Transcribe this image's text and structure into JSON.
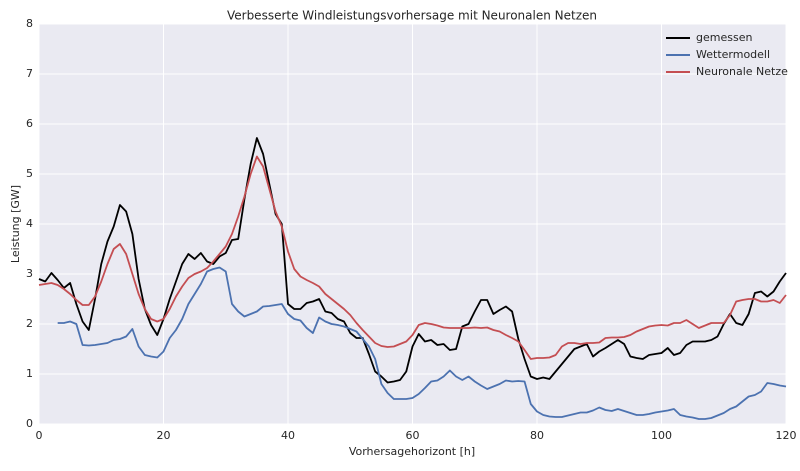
{
  "chart_data": {
    "type": "line",
    "title": "Verbesserte Windleistungsvorhersage mit Neuronalen Netzen",
    "xlabel": "Vorhersagehorizont [h]",
    "ylabel": "Leistung [GW]",
    "x": [
      0,
      1,
      2,
      3,
      4,
      5,
      6,
      7,
      8,
      9,
      10,
      11,
      12,
      13,
      14,
      15,
      16,
      17,
      18,
      19,
      20,
      21,
      22,
      23,
      24,
      25,
      26,
      27,
      28,
      29,
      30,
      31,
      32,
      33,
      34,
      35,
      36,
      37,
      38,
      39,
      40,
      41,
      42,
      43,
      44,
      45,
      46,
      47,
      48,
      49,
      50,
      51,
      52,
      53,
      54,
      55,
      56,
      57,
      58,
      59,
      60,
      61,
      62,
      63,
      64,
      65,
      66,
      67,
      68,
      69,
      70,
      71,
      72,
      73,
      74,
      75,
      76,
      77,
      78,
      79,
      80,
      81,
      82,
      83,
      84,
      85,
      86,
      87,
      88,
      89,
      90,
      91,
      92,
      93,
      94,
      95,
      96,
      97,
      98,
      99,
      100,
      101,
      102,
      103,
      104,
      105,
      106,
      107,
      108,
      109,
      110,
      111,
      112,
      113,
      114,
      115,
      116,
      117,
      118,
      119,
      120
    ],
    "series": [
      {
        "name": "gemessen",
        "color": "#000000",
        "values": [
          2.9,
          2.85,
          3.02,
          2.88,
          2.72,
          2.82,
          2.4,
          2.05,
          1.88,
          2.5,
          3.2,
          3.65,
          3.95,
          4.38,
          4.25,
          3.8,
          2.9,
          2.3,
          1.98,
          1.78,
          2.1,
          2.5,
          2.85,
          3.2,
          3.4,
          3.3,
          3.42,
          3.25,
          3.2,
          3.35,
          3.42,
          3.68,
          3.7,
          4.5,
          5.2,
          5.72,
          5.4,
          4.8,
          4.2,
          4.0,
          2.4,
          2.3,
          2.3,
          2.42,
          2.45,
          2.5,
          2.25,
          2.22,
          2.1,
          2.05,
          1.82,
          1.72,
          1.72,
          1.4,
          1.05,
          0.95,
          0.83,
          0.85,
          0.88,
          1.05,
          1.55,
          1.8,
          1.65,
          1.68,
          1.58,
          1.6,
          1.48,
          1.5,
          1.95,
          2.0,
          2.25,
          2.48,
          2.48,
          2.2,
          2.28,
          2.35,
          2.25,
          1.7,
          1.3,
          0.95,
          0.9,
          0.93,
          0.9,
          1.05,
          1.2,
          1.35,
          1.5,
          1.55,
          1.6,
          1.35,
          1.45,
          1.52,
          1.6,
          1.68,
          1.6,
          1.35,
          1.32,
          1.3,
          1.38,
          1.4,
          1.42,
          1.52,
          1.38,
          1.42,
          1.58,
          1.65,
          1.65,
          1.65,
          1.68,
          1.75,
          2.0,
          2.2,
          2.02,
          1.98,
          2.2,
          2.62,
          2.65,
          2.55,
          2.65,
          2.85,
          3.02
        ]
      },
      {
        "name": "Wettermodell",
        "color": "#4c72b0",
        "values": [
          null,
          null,
          null,
          2.02,
          2.02,
          2.05,
          2.0,
          1.58,
          1.57,
          1.58,
          1.6,
          1.62,
          1.68,
          1.7,
          1.75,
          1.9,
          1.55,
          1.38,
          1.35,
          1.33,
          1.45,
          1.72,
          1.88,
          2.1,
          2.4,
          2.6,
          2.8,
          3.05,
          3.1,
          3.13,
          3.05,
          2.4,
          2.25,
          2.15,
          2.2,
          2.25,
          2.35,
          2.36,
          2.38,
          2.4,
          2.2,
          2.1,
          2.07,
          1.92,
          1.82,
          2.13,
          2.05,
          2.0,
          1.98,
          1.95,
          1.9,
          1.85,
          1.7,
          1.55,
          1.3,
          0.8,
          0.62,
          0.5,
          0.5,
          0.5,
          0.52,
          0.6,
          0.72,
          0.85,
          0.87,
          0.95,
          1.07,
          0.95,
          0.88,
          0.95,
          0.85,
          0.77,
          0.7,
          0.75,
          0.8,
          0.87,
          0.85,
          0.86,
          0.85,
          0.4,
          0.25,
          0.18,
          0.15,
          0.14,
          0.14,
          0.17,
          0.2,
          0.23,
          0.23,
          0.27,
          0.33,
          0.28,
          0.26,
          0.3,
          0.26,
          0.22,
          0.18,
          0.18,
          0.2,
          0.23,
          0.25,
          0.27,
          0.3,
          0.18,
          0.15,
          0.13,
          0.1,
          0.1,
          0.12,
          0.17,
          0.22,
          0.3,
          0.35,
          0.45,
          0.55,
          0.58,
          0.65,
          0.82,
          0.8,
          0.77,
          0.75
        ]
      },
      {
        "name": "Neuronale Netze",
        "color": "#c44e52",
        "values": [
          2.78,
          2.8,
          2.82,
          2.78,
          2.7,
          2.6,
          2.48,
          2.38,
          2.38,
          2.55,
          2.85,
          3.2,
          3.5,
          3.6,
          3.4,
          3.0,
          2.6,
          2.3,
          2.1,
          2.05,
          2.1,
          2.3,
          2.55,
          2.75,
          2.92,
          3.0,
          3.05,
          3.12,
          3.25,
          3.4,
          3.55,
          3.8,
          4.15,
          4.55,
          5.0,
          5.35,
          5.15,
          4.7,
          4.25,
          3.95,
          3.45,
          3.1,
          2.95,
          2.88,
          2.82,
          2.75,
          2.6,
          2.5,
          2.4,
          2.3,
          2.18,
          2.02,
          1.88,
          1.75,
          1.62,
          1.56,
          1.54,
          1.55,
          1.6,
          1.65,
          1.78,
          1.98,
          2.02,
          2.0,
          1.97,
          1.93,
          1.92,
          1.92,
          1.92,
          1.92,
          1.93,
          1.92,
          1.93,
          1.88,
          1.85,
          1.78,
          1.72,
          1.65,
          1.48,
          1.3,
          1.32,
          1.32,
          1.33,
          1.38,
          1.55,
          1.62,
          1.62,
          1.6,
          1.62,
          1.62,
          1.63,
          1.72,
          1.73,
          1.73,
          1.74,
          1.78,
          1.85,
          1.9,
          1.95,
          1.97,
          1.98,
          1.97,
          2.02,
          2.02,
          2.08,
          2.0,
          1.92,
          1.97,
          2.02,
          2.02,
          2.02,
          2.18,
          2.45,
          2.48,
          2.5,
          2.5,
          2.45,
          2.45,
          2.48,
          2.42,
          2.58
        ]
      }
    ],
    "xlim": [
      0,
      120
    ],
    "xticks": [
      0,
      20,
      40,
      60,
      80,
      100,
      120
    ],
    "ylim": [
      0,
      8
    ],
    "yticks": [
      0,
      1,
      2,
      3,
      4,
      5,
      6,
      7,
      8
    ],
    "grid": true,
    "legend": "upper right"
  }
}
